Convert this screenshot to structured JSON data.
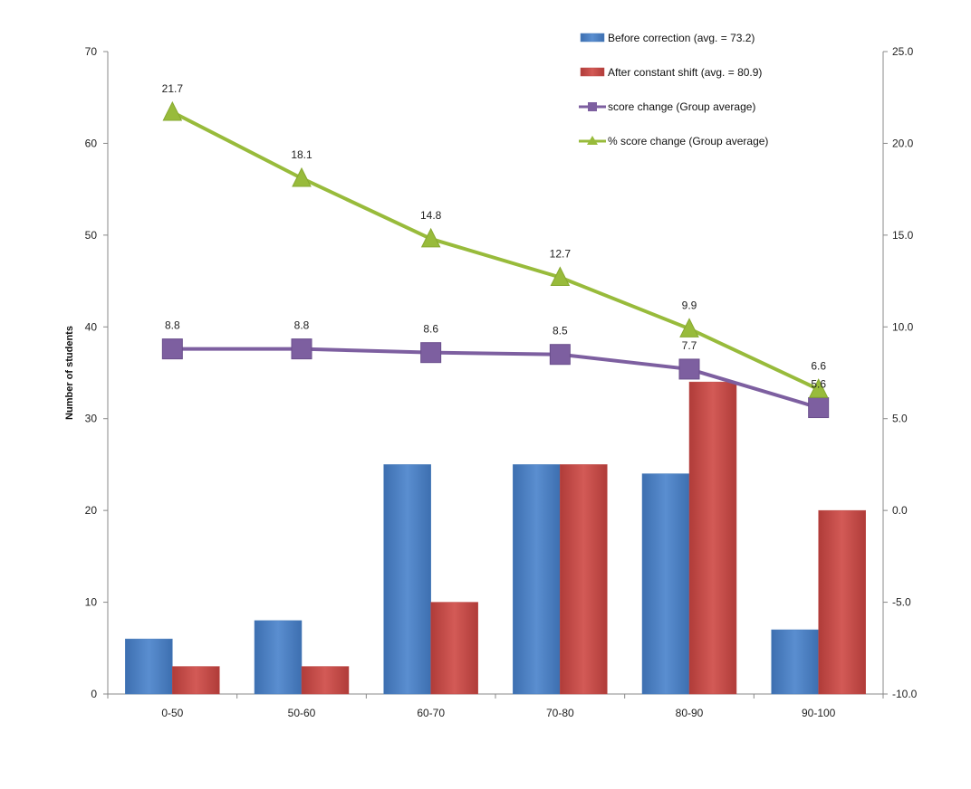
{
  "chart_data": {
    "type": "bar",
    "title": "",
    "categories": [
      "0-50",
      "50-60",
      "60-70",
      "70-80",
      "80-90",
      "90-100"
    ],
    "ylabel": "Number of students",
    "ylim": [
      0,
      70
    ],
    "yticks": [
      "0",
      "10",
      "20",
      "30",
      "40",
      "50",
      "60",
      "70"
    ],
    "y2lim": [
      -10,
      25
    ],
    "y2ticks": [
      "-10.0",
      "-5.0",
      "0.0",
      "5.0",
      "10.0",
      "15.0",
      "20.0",
      "25.0"
    ],
    "grid": false,
    "legend_position": "top-right",
    "series": [
      {
        "name": "Before correction (avg. = 73.2)",
        "type": "bar",
        "axis": "left",
        "color": "#4a7ebb",
        "values": [
          6,
          8,
          25,
          25,
          24,
          7
        ]
      },
      {
        "name": "After constant shift (avg. = 80.9)",
        "type": "bar",
        "axis": "left",
        "color": "#be4b48",
        "values": [
          3,
          3,
          10,
          25,
          34,
          20
        ]
      },
      {
        "name": "score change (Group average)",
        "type": "line",
        "axis": "right",
        "marker": "square",
        "color": "#7d5fa0",
        "values": [
          8.8,
          8.8,
          8.6,
          8.5,
          7.7,
          5.6
        ],
        "labels": [
          "8.8",
          "8.8",
          "8.6",
          "8.5",
          "7.7",
          "5.6"
        ]
      },
      {
        "name": "% score change (Group average)",
        "type": "line",
        "axis": "right",
        "marker": "triangle",
        "color": "#98bb3b",
        "values": [
          21.7,
          18.1,
          14.8,
          12.7,
          9.9,
          6.6
        ],
        "labels": [
          "21.7",
          "18.1",
          "14.8",
          "12.7",
          "9.9",
          "6.6"
        ]
      }
    ]
  }
}
